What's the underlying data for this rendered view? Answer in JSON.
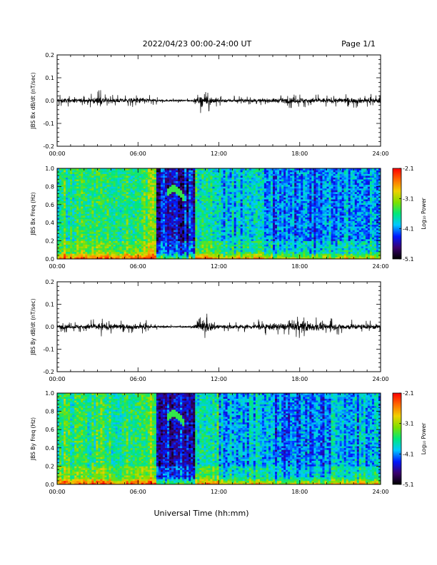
{
  "header": {
    "title": "2022/04/23  00:00-24:00 UT",
    "page": "Page 1/1"
  },
  "footer": {
    "xlabel": "Universal Time (hh:mm)"
  },
  "colors": {
    "trace": "#000000",
    "colorbar_stops": [
      "#000000",
      "#3a006e",
      "#0018ff",
      "#00c8ff",
      "#00e87a",
      "#7ee000",
      "#f0d000",
      "#ff6a00",
      "#ff0000"
    ]
  },
  "chart_data": [
    {
      "type": "line",
      "ylabel": "JBS Bx dB/dt (nT/sec)",
      "ylim": [
        -0.2,
        0.2
      ],
      "yticks": [
        "0.2",
        "0.1",
        "0.0",
        "-0.1",
        "-0.2"
      ],
      "xlim": [
        0,
        24
      ],
      "xticks": [
        "00:00",
        "06:00",
        "12:00",
        "18:00",
        "24:00"
      ],
      "envelope": {
        "hours": [
          0,
          1,
          2,
          2.5,
          3,
          3.2,
          4,
          5,
          6,
          6.4,
          7,
          8,
          9,
          10,
          10.5,
          10.8,
          11,
          11.3,
          11.6,
          12,
          13,
          14,
          15,
          16,
          17,
          17.5,
          18,
          18.5,
          19,
          20,
          21,
          22,
          23,
          24
        ],
        "max_amplitude": [
          0.03,
          0.025,
          0.025,
          0.03,
          0.04,
          0.05,
          0.025,
          0.025,
          0.035,
          0.04,
          0.02,
          0.012,
          0.01,
          0.012,
          0.04,
          0.07,
          0.05,
          0.05,
          0.04,
          0.025,
          0.02,
          0.02,
          0.02,
          0.025,
          0.03,
          0.035,
          0.035,
          0.035,
          0.03,
          0.03,
          0.03,
          0.035,
          0.03,
          0.03
        ]
      }
    },
    {
      "type": "heatmap",
      "ylabel": "JBS Bx Freq (Hz)",
      "ylim": [
        0.0,
        1.0
      ],
      "yticks": [
        "1.0",
        "0.8",
        "0.6",
        "0.4",
        "0.2",
        "0.0"
      ],
      "xlim": [
        0,
        24
      ],
      "xticks": [
        "00:00",
        "06:00",
        "12:00",
        "18:00",
        "24:00"
      ],
      "colorbar": {
        "label": "Log₁₀ Power",
        "range": [
          -5.1,
          -2.1
        ],
        "ticks": [
          "-2.1",
          "-3.1",
          "-4.1",
          "-5.1"
        ]
      }
    },
    {
      "type": "line",
      "ylabel": "JBS By dB/dt (nT/sec)",
      "ylim": [
        -0.2,
        0.2
      ],
      "yticks": [
        "0.2",
        "0.1",
        "0.0",
        "-0.1",
        "-0.2"
      ],
      "xlim": [
        0,
        24
      ],
      "xticks": [
        "00:00",
        "06:00",
        "12:00",
        "18:00",
        "24:00"
      ],
      "envelope": {
        "hours": [
          0,
          1,
          2,
          3,
          3.3,
          4,
          5,
          6,
          6.5,
          7,
          8,
          9,
          10,
          10.5,
          10.8,
          11.2,
          11.6,
          12,
          13,
          14,
          15,
          16,
          17,
          18,
          18.5,
          19,
          20,
          21,
          22,
          23,
          24
        ],
        "max_amplitude": [
          0.025,
          0.025,
          0.03,
          0.04,
          0.05,
          0.035,
          0.03,
          0.03,
          0.035,
          0.015,
          0.01,
          0.01,
          0.012,
          0.05,
          0.08,
          0.06,
          0.05,
          0.03,
          0.025,
          0.025,
          0.035,
          0.04,
          0.04,
          0.06,
          0.07,
          0.05,
          0.04,
          0.035,
          0.035,
          0.03,
          0.03
        ]
      }
    },
    {
      "type": "heatmap",
      "ylabel": "JBS By Freq (Hz)",
      "ylim": [
        0.0,
        1.0
      ],
      "yticks": [
        "1.0",
        "0.8",
        "0.6",
        "0.4",
        "0.2",
        "0.0"
      ],
      "xlim": [
        0,
        24
      ],
      "xticks": [
        "00:00",
        "06:00",
        "12:00",
        "18:00",
        "24:00"
      ],
      "colorbar": {
        "label": "Log₁₀ Power",
        "range": [
          -5.1,
          -2.1
        ],
        "ticks": [
          "-2.1",
          "-3.1",
          "-4.1",
          "-5.1"
        ]
      }
    }
  ]
}
